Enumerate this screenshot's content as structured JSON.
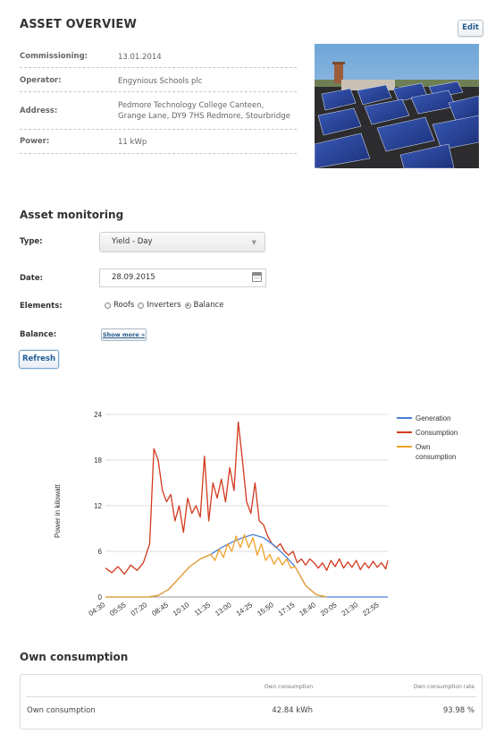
{
  "asset_overview": {
    "title": "ASSET OVERVIEW",
    "edit_label": "Edit",
    "rows": [
      {
        "label": "Commissioning:",
        "value": "13.01.2014"
      },
      {
        "label": "Operator:",
        "value": "Engynious Schools plc"
      },
      {
        "label": "Address:",
        "value_line1": "Pedmore Technology College Canteen,",
        "value_line2": "Grange Lane, DY9 7HS Redmore, Stourbridge"
      },
      {
        "label": "Power:",
        "value": "11 kWp"
      }
    ]
  },
  "monitoring": {
    "title": "Asset monitoring",
    "type_label": "Type:",
    "type_value": "Yield - Day",
    "date_label": "Date:",
    "date_value": "28.09.2015",
    "elements_label": "Elements:",
    "elements_options": [
      {
        "label": "Roofs",
        "selected": false
      },
      {
        "label": "Inverters",
        "selected": false
      },
      {
        "label": "Balance",
        "selected": true
      }
    ],
    "balance_label": "Balance:",
    "show_more_label": "Show more »",
    "refresh_label": "Refresh"
  },
  "chart_data": {
    "type": "line",
    "ylabel": "Power in kilowatt",
    "ylim": [
      0,
      24
    ],
    "yticks": [
      0,
      6,
      12,
      18,
      24
    ],
    "xticks": [
      "04:30",
      "05:55",
      "07:20",
      "08:45",
      "10:10",
      "11:35",
      "13:00",
      "14:25",
      "15:50",
      "17:15",
      "18:40",
      "20:05",
      "21:30",
      "22:55"
    ],
    "legend_position": "right",
    "grid": true,
    "series": [
      {
        "name": "Generation",
        "color": "#4a7fd4",
        "points": [
          [
            0,
            0
          ],
          [
            2,
            0
          ],
          [
            2.5,
            0.2
          ],
          [
            3,
            1
          ],
          [
            3.5,
            2.5
          ],
          [
            4,
            4
          ],
          [
            4.5,
            5
          ],
          [
            5,
            5.6
          ],
          [
            5.5,
            6.5
          ],
          [
            6,
            7.2
          ],
          [
            6.5,
            7.8
          ],
          [
            7,
            8.2
          ],
          [
            7.5,
            7.8
          ],
          [
            8,
            6.8
          ],
          [
            8.5,
            5.5
          ],
          [
            9,
            4
          ],
          [
            9.5,
            1.5
          ],
          [
            10,
            0.3
          ],
          [
            10.5,
            0
          ],
          [
            13.4,
            0
          ]
        ]
      },
      {
        "name": "Consumption",
        "color": "#d2391c",
        "points": [
          [
            0,
            3.8
          ],
          [
            0.3,
            3.2
          ],
          [
            0.6,
            4
          ],
          [
            0.9,
            3
          ],
          [
            1.2,
            4.2
          ],
          [
            1.5,
            3.5
          ],
          [
            1.8,
            4.5
          ],
          [
            2.1,
            7
          ],
          [
            2.3,
            19.5
          ],
          [
            2.5,
            18
          ],
          [
            2.7,
            14
          ],
          [
            2.9,
            12.5
          ],
          [
            3.1,
            13.5
          ],
          [
            3.3,
            10
          ],
          [
            3.5,
            12
          ],
          [
            3.7,
            8.5
          ],
          [
            3.9,
            13
          ],
          [
            4.1,
            11
          ],
          [
            4.3,
            12
          ],
          [
            4.5,
            10.5
          ],
          [
            4.7,
            18.5
          ],
          [
            4.9,
            10
          ],
          [
            5.1,
            15
          ],
          [
            5.3,
            13
          ],
          [
            5.5,
            15.5
          ],
          [
            5.7,
            12.5
          ],
          [
            5.9,
            17
          ],
          [
            6.1,
            14
          ],
          [
            6.3,
            23
          ],
          [
            6.5,
            18
          ],
          [
            6.7,
            12.5
          ],
          [
            6.9,
            11
          ],
          [
            7.1,
            15
          ],
          [
            7.3,
            10
          ],
          [
            7.5,
            9.5
          ],
          [
            7.7,
            8
          ],
          [
            7.9,
            7
          ],
          [
            8.1,
            6.5
          ],
          [
            8.3,
            7
          ],
          [
            8.5,
            6
          ],
          [
            8.7,
            5.5
          ],
          [
            8.9,
            6
          ],
          [
            9.1,
            4.5
          ],
          [
            9.3,
            5
          ],
          [
            9.5,
            4.2
          ],
          [
            9.7,
            5
          ],
          [
            9.9,
            4.5
          ],
          [
            10.1,
            3.8
          ],
          [
            10.3,
            4.5
          ],
          [
            10.5,
            3.5
          ],
          [
            10.7,
            4.8
          ],
          [
            10.9,
            4
          ],
          [
            11.1,
            5
          ],
          [
            11.3,
            3.8
          ],
          [
            11.5,
            4.6
          ],
          [
            11.7,
            3.9
          ],
          [
            11.9,
            4.8
          ],
          [
            12.1,
            3.6
          ],
          [
            12.3,
            4.5
          ],
          [
            12.5,
            3.8
          ],
          [
            12.7,
            4.7
          ],
          [
            12.9,
            3.9
          ],
          [
            13.1,
            4.5
          ],
          [
            13.3,
            3.7
          ],
          [
            13.4,
            4.8
          ]
        ]
      },
      {
        "name": "Own consumption",
        "color": "#f0a22a",
        "points": [
          [
            0,
            0
          ],
          [
            2,
            0
          ],
          [
            2.5,
            0.2
          ],
          [
            3,
            1
          ],
          [
            3.5,
            2.5
          ],
          [
            4,
            4
          ],
          [
            4.5,
            5
          ],
          [
            5,
            5.6
          ],
          [
            5.2,
            4.8
          ],
          [
            5.4,
            6.3
          ],
          [
            5.6,
            5.2
          ],
          [
            5.8,
            7
          ],
          [
            6,
            6
          ],
          [
            6.2,
            8
          ],
          [
            6.4,
            6.5
          ],
          [
            6.6,
            8.2
          ],
          [
            6.8,
            6.5
          ],
          [
            7,
            7.8
          ],
          [
            7.2,
            5.5
          ],
          [
            7.4,
            7
          ],
          [
            7.6,
            4.8
          ],
          [
            7.8,
            5.6
          ],
          [
            8,
            4.3
          ],
          [
            8.2,
            5.2
          ],
          [
            8.4,
            4.2
          ],
          [
            8.6,
            5
          ],
          [
            8.8,
            3.8
          ],
          [
            9,
            4
          ],
          [
            9.5,
            1.5
          ],
          [
            10,
            0.3
          ],
          [
            10.5,
            0
          ]
        ]
      }
    ]
  },
  "own_consumption": {
    "title": "Own consumption",
    "col1": "Own consumption",
    "col2": "Own consumption rate",
    "row_label": "Own consumption",
    "value": "42.84 kWh",
    "rate": "93.98 %"
  }
}
